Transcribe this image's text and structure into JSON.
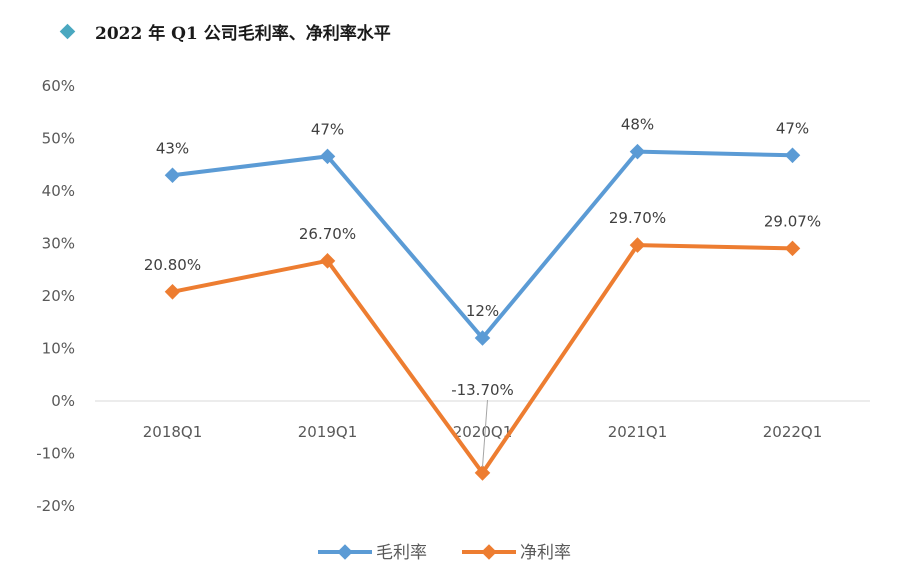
{
  "heading": {
    "text": "2022 年 Q1 公司毛利率、净利率水平",
    "marker_color": "#4aa8c0"
  },
  "chart_data": {
    "type": "line",
    "title": "",
    "xlabel": "",
    "ylabel": "",
    "categories": [
      "2018Q1",
      "2019Q1",
      "2020Q1",
      "2021Q1",
      "2022Q1"
    ],
    "ylim": [
      -0.2,
      0.6
    ],
    "y_ticks": [
      {
        "value": 0.6,
        "label": "60%"
      },
      {
        "value": 0.5,
        "label": "50%"
      },
      {
        "value": 0.4,
        "label": "40%"
      },
      {
        "value": 0.3,
        "label": "30%"
      },
      {
        "value": 0.2,
        "label": "20%"
      },
      {
        "value": 0.1,
        "label": "10%"
      },
      {
        "value": 0.0,
        "label": "0%"
      },
      {
        "value": -0.1,
        "label": "-10%"
      },
      {
        "value": -0.2,
        "label": "-20%"
      }
    ],
    "grid": false,
    "legend_position": "bottom",
    "series": [
      {
        "name": "毛利率",
        "color": "#5b9bd5",
        "values": [
          0.43,
          0.466,
          0.12,
          0.475,
          0.468
        ],
        "labels": [
          "43%",
          "47%",
          "12%",
          "48%",
          "47%"
        ]
      },
      {
        "name": "净利率",
        "color": "#ed7d31",
        "values": [
          0.208,
          0.267,
          -0.137,
          0.297,
          0.2907
        ],
        "labels": [
          "20.80%",
          "26.70%",
          "-13.70%",
          "29.70%",
          "29.07%"
        ]
      }
    ]
  }
}
